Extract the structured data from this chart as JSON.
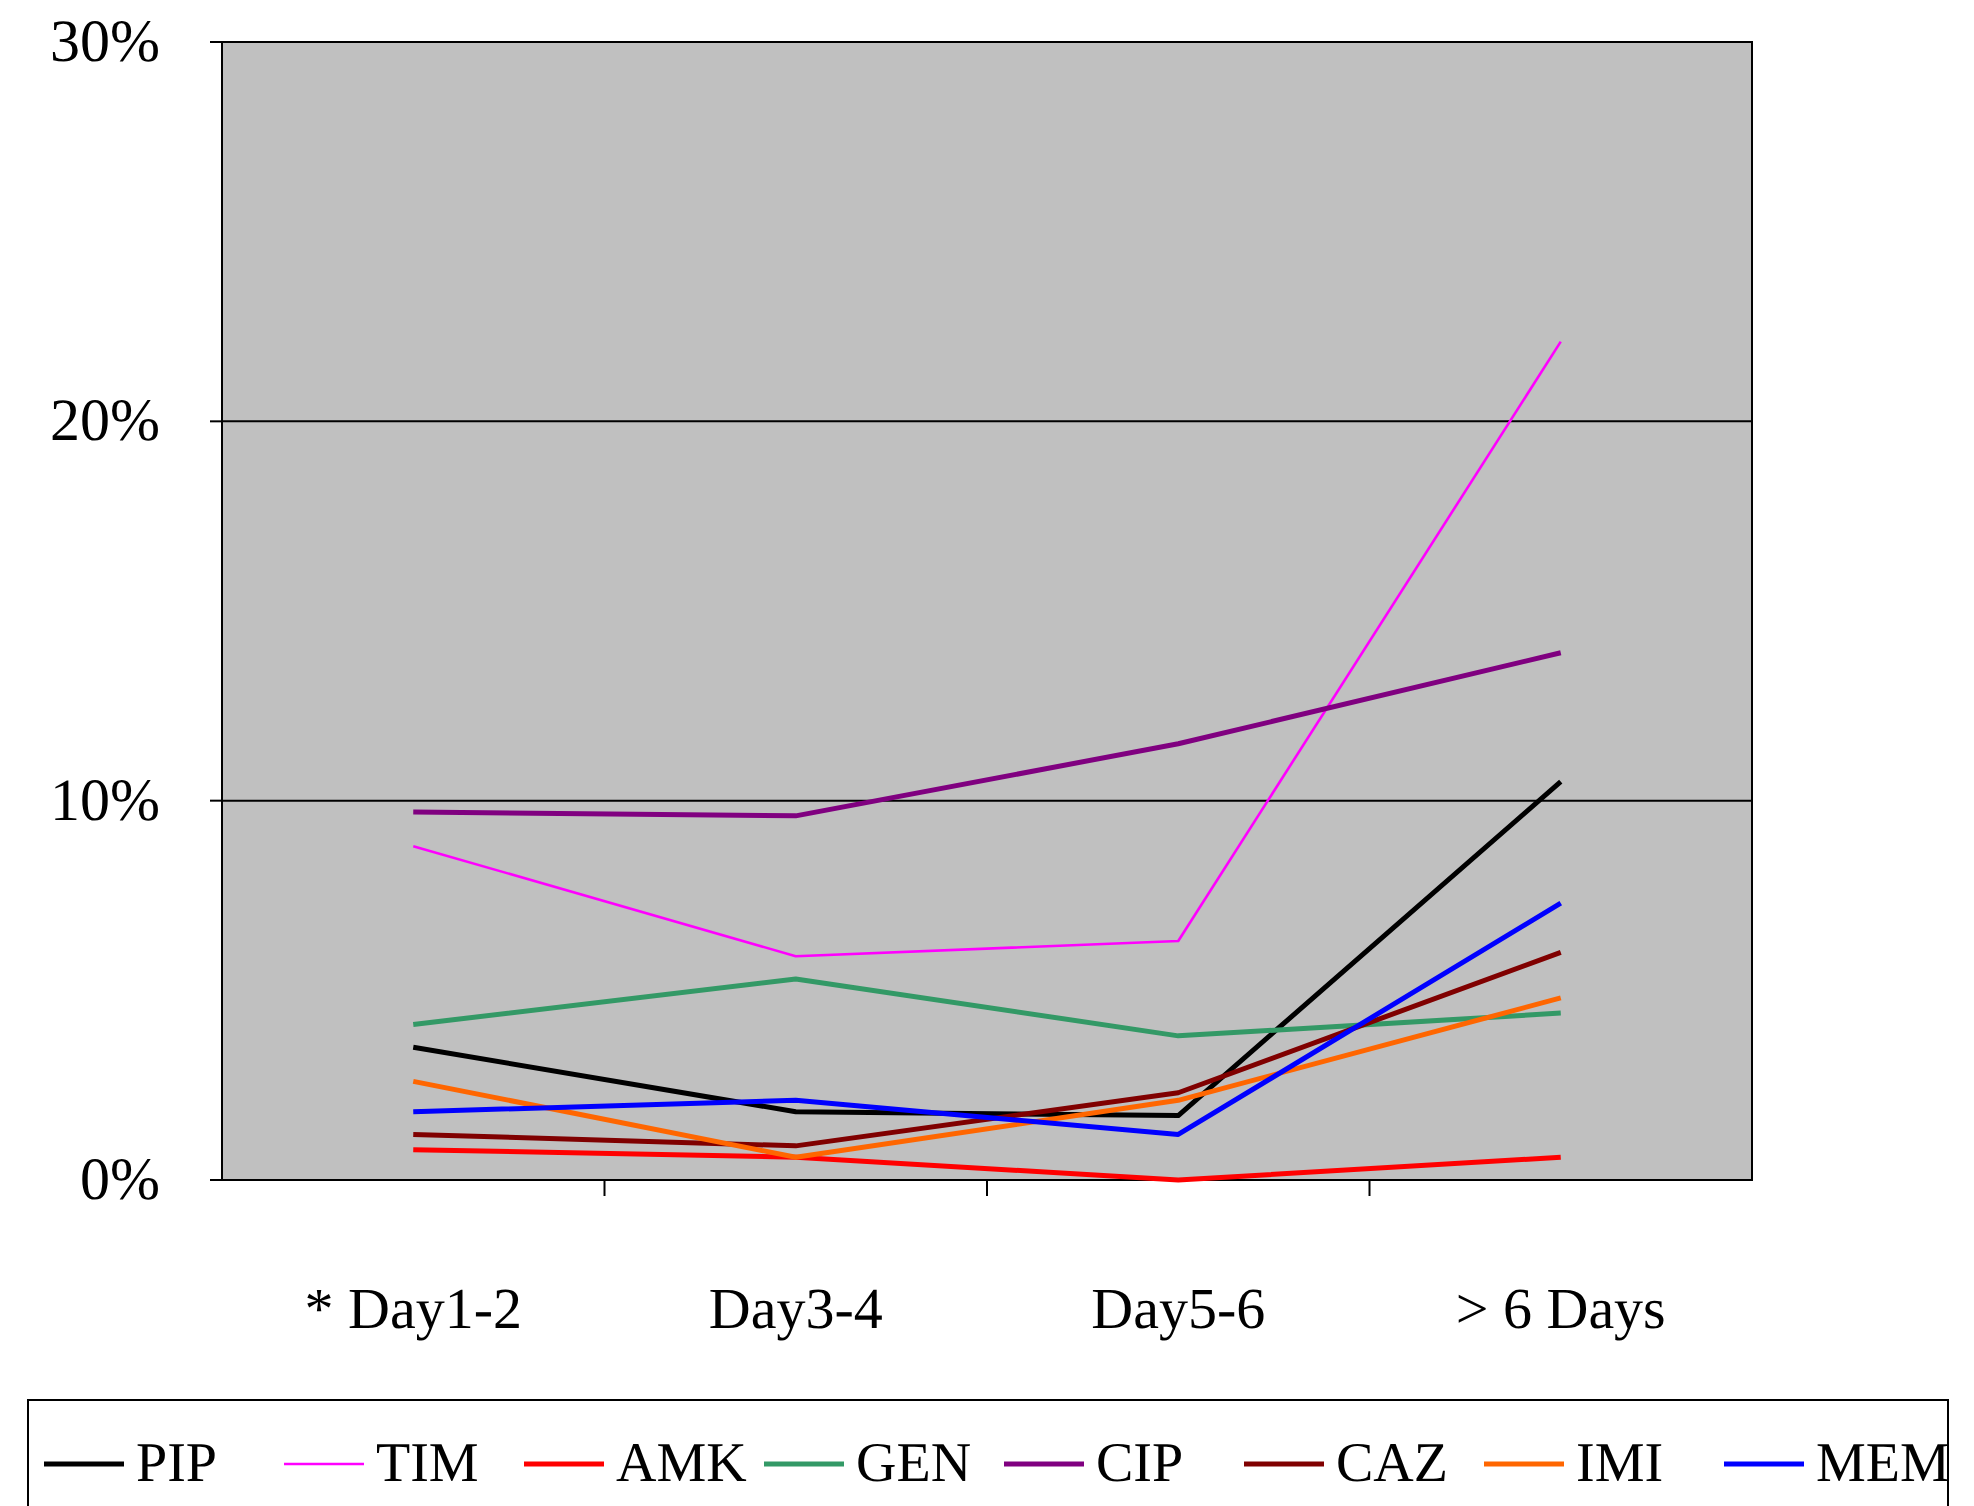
{
  "chart_data": {
    "type": "line",
    "categories": [
      "* Day1-2",
      "Day3-4",
      "Day5-6",
      "> 6 Days"
    ],
    "series": [
      {
        "name": "PIP",
        "color": "#000000",
        "values": [
          3.5,
          1.8,
          1.7,
          10.5
        ]
      },
      {
        "name": "TIM",
        "color": "#ff00ff",
        "values": [
          8.8,
          5.9,
          6.3,
          22.1
        ]
      },
      {
        "name": "AMK",
        "color": "#ff0000",
        "values": [
          0.8,
          0.6,
          0,
          0.6
        ]
      },
      {
        "name": "GEN",
        "color": "#339966",
        "values": [
          4.1,
          5.3,
          3.8,
          4.4
        ]
      },
      {
        "name": "CIP",
        "color": "#800080",
        "values": [
          9.7,
          9.6,
          11.5,
          13.9
        ]
      },
      {
        "name": "CAZ",
        "color": "#800000",
        "values": [
          1.2,
          0.9,
          2.3,
          6.0
        ]
      },
      {
        "name": "IMI",
        "color": "#ff6600",
        "values": [
          2.6,
          0.6,
          2.1,
          4.8
        ]
      },
      {
        "name": "MEM",
        "color": "#0000ff",
        "values": [
          1.8,
          2.1,
          1.2,
          7.3
        ]
      }
    ],
    "ylim": [
      0,
      30
    ],
    "yticks": [
      {
        "value": 0,
        "label": "0%"
      },
      {
        "value": 10,
        "label": "10%"
      },
      {
        "value": 20,
        "label": "20%"
      },
      {
        "value": 30,
        "label": "30%"
      }
    ],
    "grid": "y",
    "legend": "bottom",
    "marker": "none",
    "line_style": "solid"
  }
}
